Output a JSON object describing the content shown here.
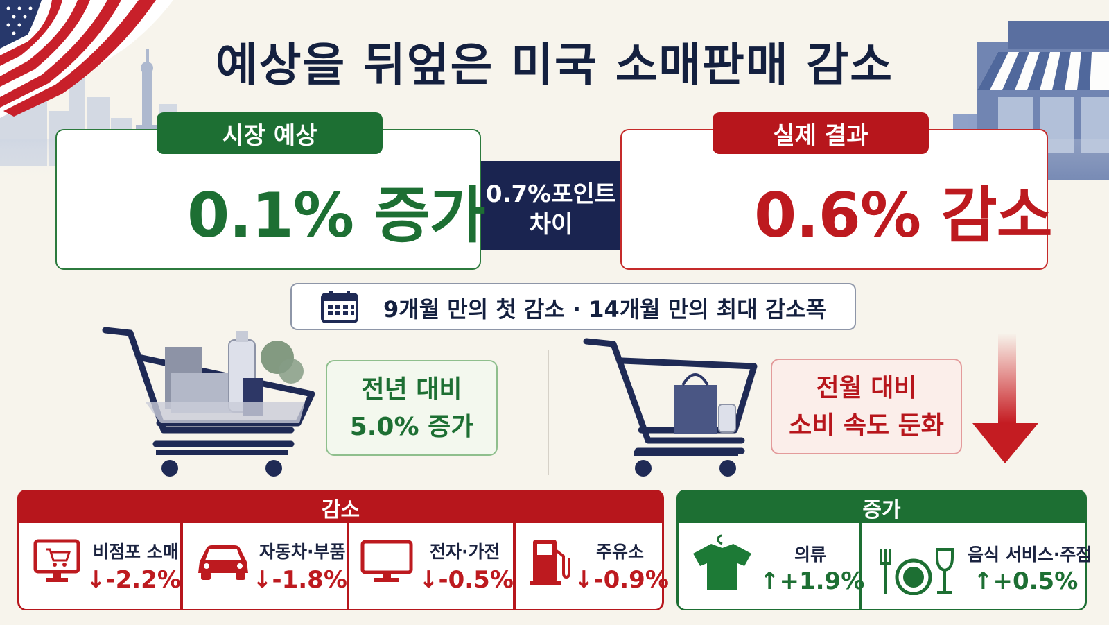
{
  "title": "예상을 뒤엎은 미국 소매판매 감소",
  "expected": {
    "tag": "시장 예상",
    "value": "0.1% 증가",
    "icon": "arrow-up-icon"
  },
  "actual": {
    "tag": "실제 결과",
    "value": "0.6% 감소",
    "icon": "arrow-down-icon"
  },
  "difference": {
    "line1": "0.7%포인트",
    "line2": "차이"
  },
  "info_bar": {
    "icon": "calendar-icon",
    "text": "9개월 만의 첫 감소 · 14개월 만의 최대 감소폭"
  },
  "yoy_note": {
    "line1": "전년 대비",
    "line2": "5.0% 증가"
  },
  "mom_note": {
    "line1": "전월 대비",
    "line2": "소비 속도 둔화"
  },
  "decrease": {
    "title": "감소",
    "items": [
      {
        "label": "비점포 소매",
        "value": "-2.2%",
        "icon": "online-shopping-monitor-icon"
      },
      {
        "label": "자동차·부품",
        "value": "-1.8%",
        "icon": "car-icon"
      },
      {
        "label": "전자·가전",
        "value": "-0.5%",
        "icon": "tv-monitor-icon"
      },
      {
        "label": "주유소",
        "value": "-0.9%",
        "icon": "gas-pump-icon"
      }
    ]
  },
  "increase": {
    "title": "증가",
    "items": [
      {
        "label": "의류",
        "value": "+1.9%",
        "icon": "tshirt-icon"
      },
      {
        "label": "음식 서비스·주점",
        "value": "+0.5%",
        "icon": "dining-icon"
      }
    ]
  },
  "colors": {
    "green": "#1d6f33",
    "red": "#b7161c",
    "navy": "#14203f",
    "background": "#f7f4ec"
  }
}
